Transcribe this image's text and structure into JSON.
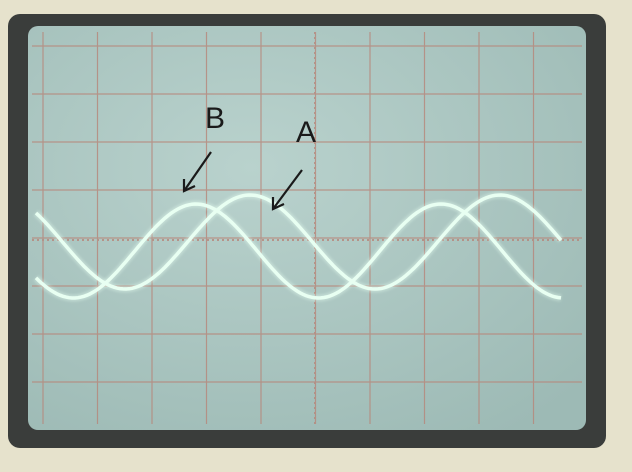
{
  "labels": {
    "b": "B",
    "a": "A"
  }
}
